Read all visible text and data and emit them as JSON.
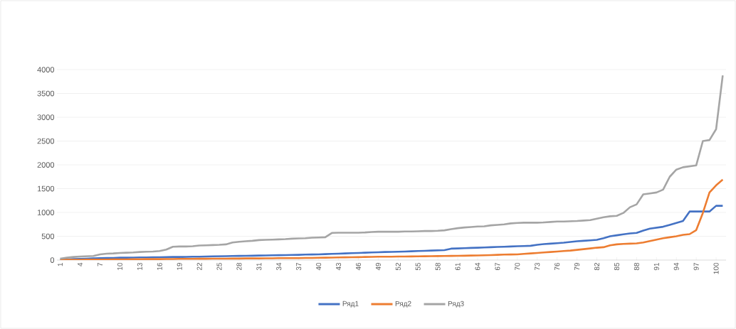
{
  "chart_data": {
    "type": "line",
    "categories": [
      "1",
      null,
      null,
      "4",
      null,
      null,
      "7",
      null,
      null,
      "10",
      null,
      null,
      "13",
      null,
      null,
      "16",
      null,
      null,
      "19",
      null,
      null,
      "22",
      null,
      null,
      "25",
      null,
      null,
      "28",
      null,
      null,
      "31",
      null,
      null,
      "34",
      null,
      null,
      "37",
      null,
      null,
      "40",
      null,
      null,
      "43",
      null,
      null,
      "46",
      null,
      null,
      "49",
      null,
      null,
      "52",
      null,
      null,
      "55",
      null,
      null,
      "58",
      null,
      null,
      "61",
      null,
      null,
      "64",
      null,
      null,
      "67",
      null,
      null,
      "70",
      null,
      null,
      "73",
      null,
      null,
      "76",
      null,
      null,
      "79",
      null,
      null,
      "82",
      null,
      null,
      "85",
      null,
      null,
      "88",
      null,
      null,
      "91",
      null,
      null,
      "94",
      null,
      null,
      "97",
      null,
      null,
      "100",
      null
    ],
    "series": [
      {
        "name": "Ряд1",
        "color": "#4472c4",
        "values": [
          10,
          15,
          20,
          25,
          30,
          35,
          40,
          45,
          45,
          50,
          50,
          52,
          55,
          55,
          58,
          60,
          62,
          65,
          65,
          68,
          70,
          72,
          75,
          78,
          80,
          82,
          85,
          88,
          90,
          92,
          95,
          98,
          100,
          102,
          105,
          108,
          110,
          115,
          118,
          120,
          125,
          130,
          135,
          140,
          145,
          150,
          155,
          160,
          165,
          170,
          172,
          175,
          180,
          185,
          190,
          195,
          200,
          205,
          210,
          240,
          245,
          250,
          255,
          260,
          265,
          270,
          275,
          280,
          285,
          290,
          295,
          300,
          320,
          335,
          345,
          355,
          365,
          380,
          395,
          405,
          415,
          425,
          460,
          500,
          520,
          540,
          560,
          570,
          620,
          660,
          680,
          700,
          740,
          780,
          820,
          1020,
          1020,
          1020,
          1020,
          1140,
          1140
        ]
      },
      {
        "name": "Ряд2",
        "color": "#ed7d31",
        "values": [
          5,
          5,
          8,
          8,
          10,
          10,
          12,
          12,
          15,
          15,
          15,
          18,
          18,
          20,
          20,
          20,
          22,
          22,
          25,
          25,
          25,
          28,
          28,
          30,
          30,
          30,
          32,
          32,
          35,
          35,
          35,
          38,
          38,
          40,
          40,
          42,
          42,
          45,
          45,
          48,
          50,
          52,
          55,
          58,
          60,
          62,
          65,
          68,
          70,
          72,
          72,
          74,
          75,
          76,
          78,
          80,
          82,
          84,
          86,
          88,
          90,
          92,
          95,
          98,
          100,
          105,
          110,
          115,
          118,
          120,
          130,
          140,
          150,
          160,
          170,
          180,
          190,
          200,
          215,
          230,
          245,
          260,
          270,
          310,
          330,
          340,
          345,
          350,
          370,
          400,
          430,
          460,
          480,
          500,
          530,
          545,
          630,
          990,
          1420,
          1570,
          1690
        ]
      },
      {
        "name": "Ряд3",
        "color": "#a5a5a5",
        "values": [
          30,
          50,
          65,
          75,
          80,
          85,
          120,
          135,
          140,
          150,
          155,
          160,
          170,
          175,
          180,
          190,
          220,
          280,
          285,
          285,
          290,
          305,
          310,
          315,
          320,
          330,
          370,
          385,
          395,
          405,
          420,
          425,
          430,
          435,
          440,
          450,
          455,
          460,
          470,
          475,
          480,
          570,
          575,
          575,
          575,
          575,
          580,
          590,
          595,
          595,
          595,
          595,
          600,
          600,
          605,
          610,
          610,
          615,
          625,
          650,
          670,
          685,
          695,
          705,
          710,
          730,
          740,
          750,
          770,
          780,
          785,
          785,
          785,
          790,
          800,
          810,
          810,
          815,
          820,
          830,
          840,
          870,
          900,
          920,
          930,
          990,
          1110,
          1170,
          1380,
          1400,
          1420,
          1480,
          1750,
          1900,
          1950,
          1970,
          1990,
          2500,
          2520,
          2750,
          3880
        ]
      }
    ],
    "ylim": [
      0,
      4000
    ],
    "yticks": [
      0,
      500,
      1000,
      1500,
      2000,
      2500,
      3000,
      3500,
      4000
    ],
    "grid": "y",
    "legend": "bottom"
  }
}
